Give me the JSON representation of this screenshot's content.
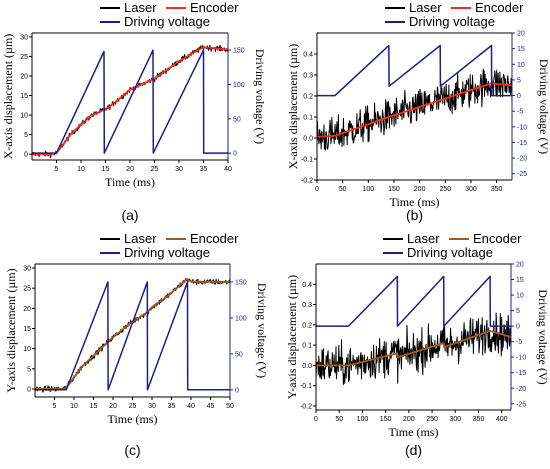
{
  "colors": {
    "laser": "#000000",
    "encoder": "#ff2a1a",
    "encoder_yaxis_a": "#a35a1a",
    "voltage": "#1b1f8c",
    "voltage_axis": "#1b1f8c",
    "axis": "#000000"
  },
  "chart_data": [
    {
      "panel": "(a)",
      "type": "line",
      "xlabel": "Time (ms)",
      "ylabel": "X-axis displacement (µm)",
      "y2label": "Driving voltage (V)",
      "xlim": [
        0,
        40
      ],
      "xticks": [
        5,
        10,
        15,
        20,
        25,
        30,
        35,
        40
      ],
      "ylim": [
        -1.5,
        31
      ],
      "yticks": [
        0,
        5,
        10,
        15,
        20,
        25,
        30
      ],
      "y2lim": [
        -10,
        175
      ],
      "y2ticks": [
        0,
        50,
        100,
        150
      ],
      "legend": [
        "Laser",
        "Encoder",
        "Driving voltage"
      ],
      "legend_placement": "top",
      "encoder_color_key": "encoder",
      "series": [
        {
          "name": "Encoder",
          "axis": "y1",
          "x": [
            0,
            4,
            5,
            8,
            12,
            15,
            16,
            20,
            25,
            26,
            30,
            35,
            40
          ],
          "y": [
            0,
            0,
            0.3,
            5.2,
            9.8,
            11.5,
            12.3,
            16.5,
            19.3,
            20.2,
            23.8,
            27.4,
            26.8
          ]
        },
        {
          "name": "Laser",
          "axis": "y1",
          "x": [
            0,
            4,
            5,
            8,
            12,
            15,
            16,
            20,
            25,
            26,
            30,
            35,
            40
          ],
          "y": [
            0,
            0,
            0.3,
            5.2,
            9.8,
            11.5,
            12.3,
            16.5,
            19.3,
            20.2,
            23.8,
            27.4,
            26.8
          ],
          "noise": 0.5
        },
        {
          "name": "Driving voltage",
          "axis": "y2",
          "x": [
            0,
            5,
            14.7,
            14.75,
            24.7,
            24.75,
            35,
            35.05,
            40
          ],
          "y": [
            0,
            0,
            148,
            0,
            150,
            0,
            150,
            0,
            0
          ]
        }
      ]
    },
    {
      "panel": "(b)",
      "type": "line",
      "xlabel": "Time (ms)",
      "ylabel": "X-axis displacement (µm)",
      "y2label": "Driving voltage (V)",
      "xlim": [
        0,
        380
      ],
      "xticks": [
        0,
        50,
        100,
        150,
        200,
        250,
        300,
        350
      ],
      "ylim": [
        -0.2,
        0.5
      ],
      "yticks": [
        -0.2,
        -0.1,
        0.0,
        0.1,
        0.2,
        0.3,
        0.4
      ],
      "ytick_labels": [
        "-0.2",
        "-0.1",
        "0.0",
        "0.1",
        "0.2",
        "0.3",
        "0.4"
      ],
      "y2lim": [
        -27,
        20
      ],
      "y2ticks": [
        -25,
        -20,
        -15,
        -10,
        -5,
        0,
        5,
        10,
        15,
        20
      ],
      "legend": [
        "Laser",
        "Encoder",
        "Driving voltage"
      ],
      "legend_placement": "top",
      "encoder_color_key": "encoder",
      "series": [
        {
          "name": "Encoder",
          "axis": "y1",
          "x": [
            0,
            35,
            140,
            240,
            340,
            380
          ],
          "y": [
            0.005,
            0.01,
            0.1,
            0.18,
            0.26,
            0.25
          ]
        },
        {
          "name": "Laser",
          "axis": "y1",
          "x": [
            0,
            35,
            140,
            240,
            340,
            380
          ],
          "y": [
            0.005,
            0.01,
            0.1,
            0.18,
            0.26,
            0.25
          ],
          "noise": 0.06
        },
        {
          "name": "Driving voltage",
          "axis": "y2",
          "x": [
            0,
            35,
            140,
            140.5,
            240,
            240.5,
            340,
            340.5,
            380
          ],
          "y": [
            0,
            0,
            16,
            3,
            16,
            3,
            16,
            0,
            0
          ]
        }
      ]
    },
    {
      "panel": "(c)",
      "type": "line",
      "xlabel": "Time (ms)",
      "ylabel": "Y-axis displacement (µm)",
      "y2label": "Driving voltage (V)",
      "xlim": [
        0,
        50
      ],
      "xticks": [
        5,
        10,
        15,
        20,
        25,
        30,
        35,
        40,
        45,
        50
      ],
      "ylim": [
        -2,
        31
      ],
      "yticks": [
        0,
        5,
        10,
        15,
        20,
        25,
        30
      ],
      "y2lim": [
        -10,
        175
      ],
      "y2ticks": [
        0,
        50,
        100,
        150
      ],
      "legend": [
        "Laser",
        "Encoder",
        "Driving voltage"
      ],
      "legend_placement": "top",
      "encoder_color_key": "encoder_yaxis_a",
      "series": [
        {
          "name": "Encoder",
          "axis": "y1",
          "x": [
            0,
            7,
            8,
            12,
            18,
            19,
            24,
            29,
            30,
            34,
            39,
            40,
            50
          ],
          "y": [
            0,
            0,
            0.3,
            5.5,
            11,
            12,
            16,
            19.2,
            20.3,
            23,
            27.3,
            26.6,
            26.5
          ]
        },
        {
          "name": "Laser",
          "axis": "y1",
          "x": [
            0,
            7,
            8,
            12,
            18,
            19,
            24,
            29,
            30,
            34,
            39,
            40,
            50
          ],
          "y": [
            0,
            0,
            0.3,
            5.5,
            11,
            12,
            16,
            19.2,
            20.3,
            23,
            27.3,
            26.6,
            26.5
          ],
          "noise": 0.5
        },
        {
          "name": "Driving voltage",
          "axis": "y2",
          "x": [
            0,
            8,
            18.7,
            18.75,
            28.8,
            28.85,
            39.1,
            39.15,
            50
          ],
          "y": [
            0,
            0,
            150,
            0,
            150,
            0,
            150,
            0,
            0
          ]
        }
      ]
    },
    {
      "panel": "(d)",
      "type": "line",
      "xlabel": "Time (ms)",
      "ylabel": "Y-axis displacement (µm)",
      "y2label": "Driving voltage (V)",
      "xlim": [
        0,
        420
      ],
      "xticks": [
        0,
        50,
        100,
        150,
        200,
        250,
        300,
        350,
        400
      ],
      "ylim": [
        -0.22,
        0.5
      ],
      "yticks": [
        -0.2,
        -0.1,
        0.0,
        0.1,
        0.2,
        0.3,
        0.4
      ],
      "ytick_labels": [
        "-0.2",
        "-0.1",
        "0.0",
        "0.1",
        "0.2",
        "0.3",
        "0.4"
      ],
      "y2lim": [
        -27,
        20
      ],
      "y2ticks": [
        -25,
        -20,
        -15,
        -10,
        -5,
        0,
        5,
        10,
        15,
        20
      ],
      "legend": [
        "Laser",
        "Encoder",
        "Driving voltage"
      ],
      "legend_placement": "top",
      "encoder_color_key": "encoder_yaxis_a",
      "series": [
        {
          "name": "Encoder",
          "axis": "y1",
          "x": [
            0,
            70,
            175,
            176,
            275,
            276,
            375,
            420
          ],
          "y": [
            0,
            0,
            0.06,
            0.04,
            0.11,
            0.09,
            0.17,
            0.14
          ]
        },
        {
          "name": "Laser",
          "axis": "y1",
          "x": [
            0,
            70,
            175,
            176,
            275,
            276,
            375,
            420
          ],
          "y": [
            0,
            0,
            0.06,
            0.04,
            0.11,
            0.09,
            0.17,
            0.14
          ],
          "noise": 0.07
        },
        {
          "name": "Driving voltage",
          "axis": "y2",
          "x": [
            0,
            70,
            175,
            175.5,
            275,
            275.5,
            375,
            375.5,
            420
          ],
          "y": [
            0,
            0,
            16,
            0,
            16,
            0,
            16,
            0,
            0
          ]
        }
      ]
    }
  ]
}
